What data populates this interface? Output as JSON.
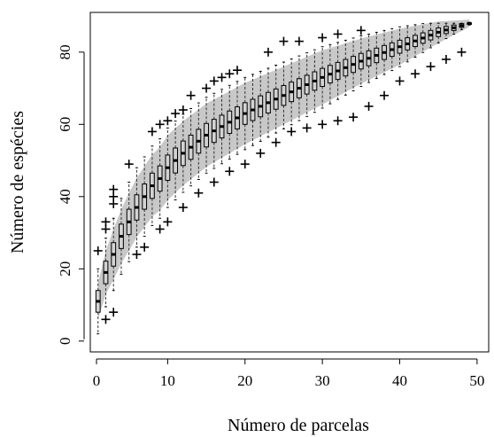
{
  "chart_data": {
    "type": "box",
    "title": "",
    "xlabel": "Número de parcelas",
    "ylabel": "Número de espécies",
    "xlim": [
      0,
      51.5
    ],
    "ylim": [
      -3,
      91
    ],
    "xticks": [
      0,
      10,
      20,
      30,
      40,
      50
    ],
    "yticks": [
      0,
      20,
      40,
      60,
      80
    ],
    "grid": false,
    "legend": "none",
    "n_boxes": 49,
    "total_species": 88,
    "median_curve": {
      "x": [
        1,
        2,
        3,
        4,
        5,
        6,
        7,
        8,
        9,
        10,
        12,
        15,
        20,
        25,
        30,
        35,
        40,
        45,
        49
      ],
      "y": [
        11,
        19,
        24,
        29,
        33,
        37,
        40,
        43,
        45,
        48,
        52,
        57,
        63,
        68,
        73,
        77.5,
        81.5,
        85.5,
        88
      ]
    },
    "box_half_width": {
      "x": [
        1,
        5,
        10,
        20,
        30,
        40,
        45,
        49
      ],
      "y": [
        3,
        3.5,
        3.5,
        3,
        2.5,
        1.8,
        1.2,
        0.3
      ]
    },
    "whisker_half_width": {
      "x": [
        1,
        3,
        5,
        10,
        20,
        30,
        40,
        45,
        49
      ],
      "y": [
        9,
        10,
        11,
        11,
        10,
        8.5,
        5.5,
        3,
        0.5
      ]
    },
    "confidence_band_half_width": {
      "x": [
        1,
        3,
        5,
        10,
        20,
        30,
        40,
        45,
        49
      ],
      "y": [
        5,
        7,
        8,
        9,
        8.5,
        7.5,
        5,
        3,
        1
      ]
    },
    "outliers_upper": [
      [
        1,
        25
      ],
      [
        2,
        31
      ],
      [
        2,
        33
      ],
      [
        3,
        38
      ],
      [
        3,
        40
      ],
      [
        3,
        42
      ],
      [
        5,
        49
      ],
      [
        8,
        58
      ],
      [
        9,
        60
      ],
      [
        10,
        61
      ],
      [
        11,
        63
      ],
      [
        12,
        64
      ],
      [
        13,
        68
      ],
      [
        15,
        70
      ],
      [
        16,
        72
      ],
      [
        17,
        73
      ],
      [
        18,
        74
      ],
      [
        19,
        75
      ],
      [
        23,
        80
      ],
      [
        25,
        83
      ],
      [
        27,
        83
      ],
      [
        30,
        84
      ],
      [
        32,
        85
      ],
      [
        35,
        86
      ]
    ],
    "outliers_lower": [
      [
        2,
        6
      ],
      [
        3,
        8
      ],
      [
        6,
        24
      ],
      [
        7,
        26
      ],
      [
        9,
        31
      ],
      [
        10,
        33
      ],
      [
        12,
        37
      ],
      [
        14,
        41
      ],
      [
        16,
        44
      ],
      [
        18,
        47
      ],
      [
        20,
        49
      ],
      [
        22,
        52
      ],
      [
        24,
        55
      ],
      [
        26,
        58
      ],
      [
        28,
        59
      ],
      [
        30,
        60
      ],
      [
        32,
        61
      ],
      [
        34,
        62
      ],
      [
        36,
        65
      ],
      [
        38,
        68
      ],
      [
        40,
        72
      ],
      [
        42,
        74
      ],
      [
        44,
        76
      ],
      [
        46,
        78
      ],
      [
        48,
        80
      ]
    ]
  },
  "colors": {
    "band": "#c8c8c8",
    "box_fill": "#d3d3d3",
    "stroke": "#000000",
    "whisker": "#333333"
  }
}
